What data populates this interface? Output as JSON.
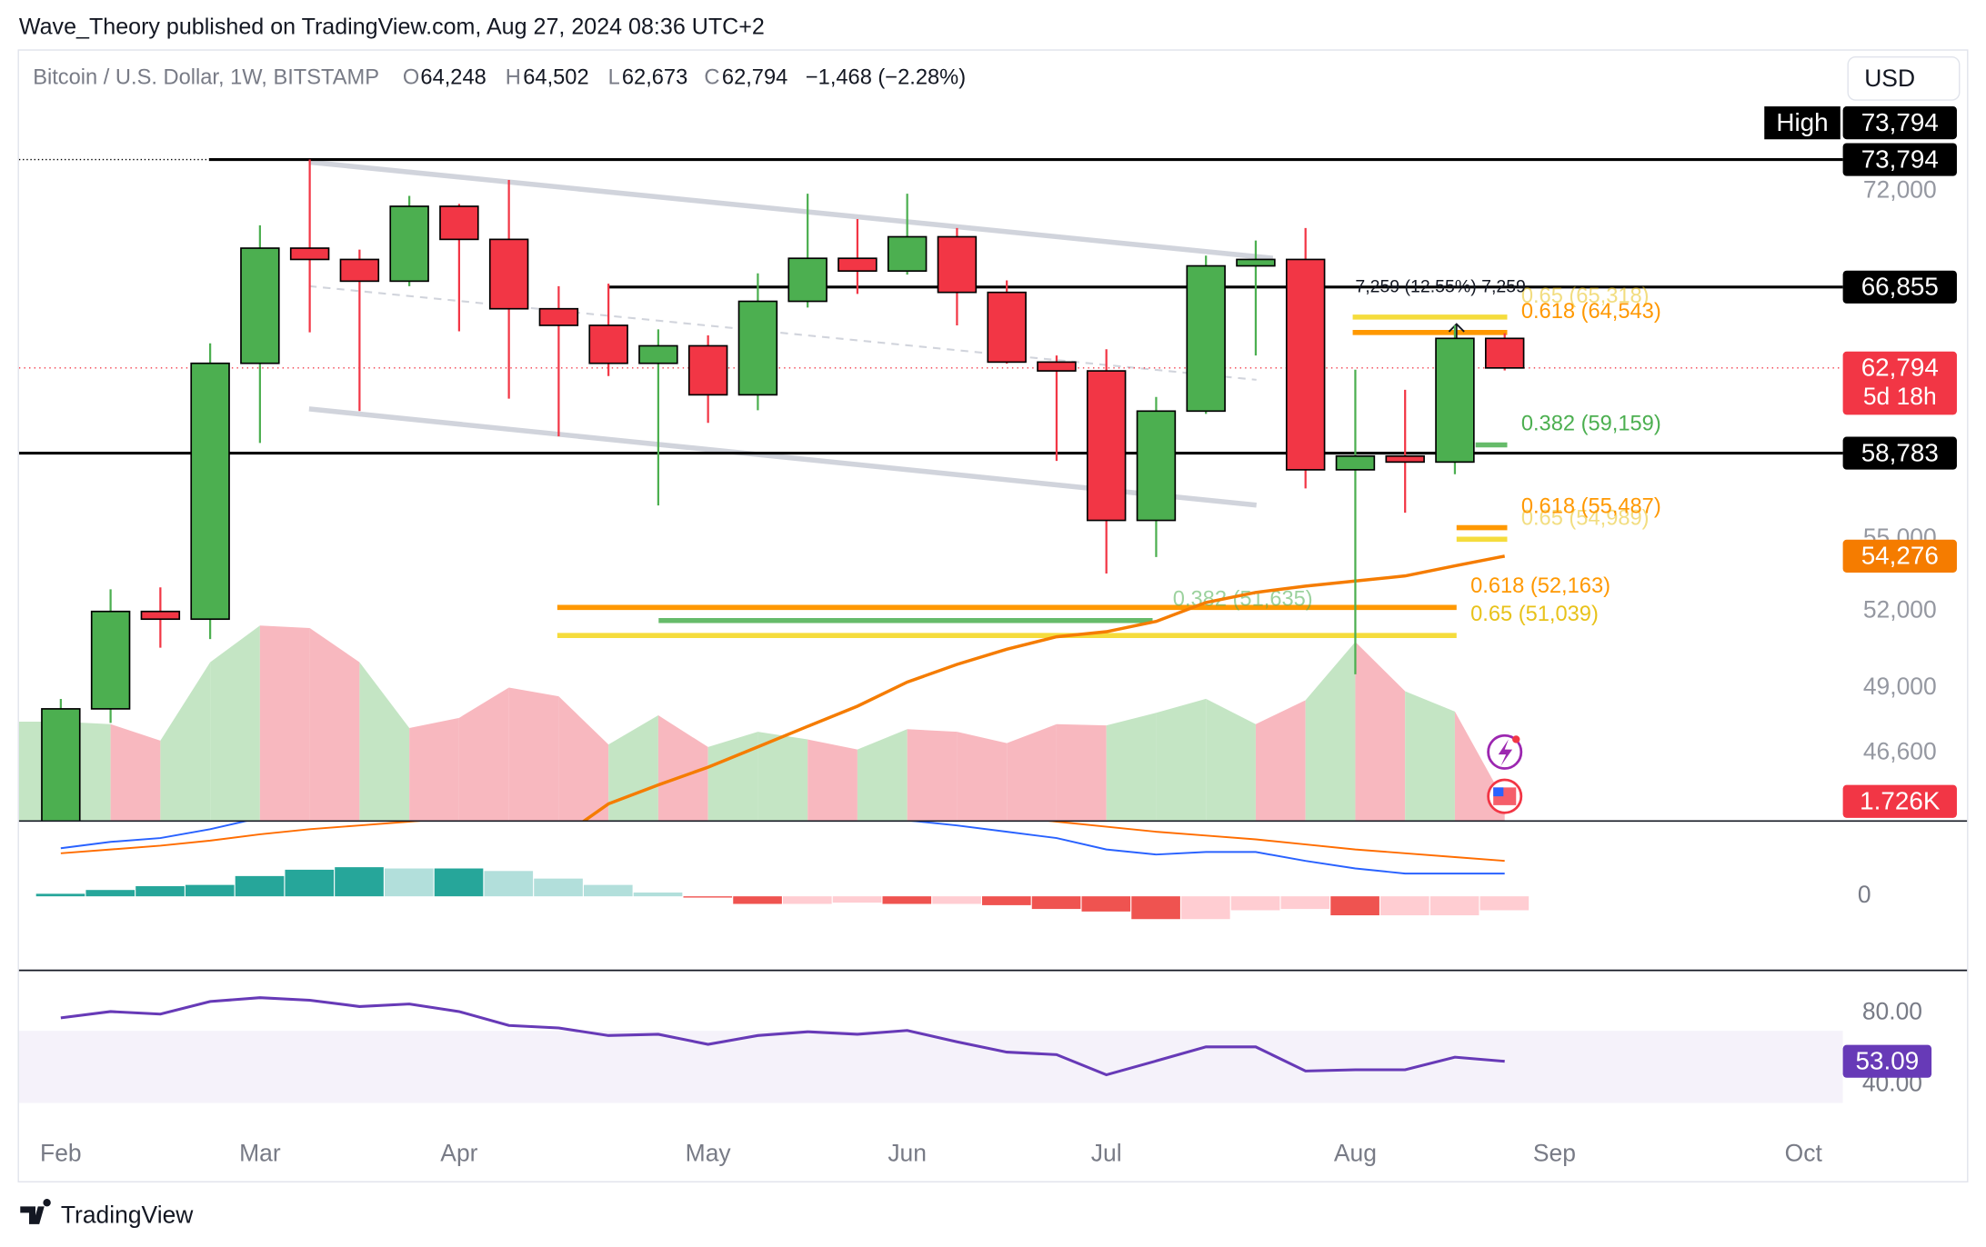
{
  "header": {
    "text": "Wave_Theory published on TradingView.com, Aug 27, 2024 08:36 UTC+2"
  },
  "legend": {
    "symbol": "Bitcoin / U.S. Dollar, 1W, BITSTAMP",
    "o_key": "O",
    "o": "64,248",
    "h_key": "H",
    "h": "64,502",
    "l_key": "L",
    "l": "62,673",
    "c_key": "C",
    "c": "62,794",
    "change": "−1,468 (−2.28%)"
  },
  "currency": "USD",
  "footer": "TradingView",
  "chart_data": {
    "type": "candlestick",
    "log_scale": true,
    "ylim": [
      44230,
      80290
    ],
    "yticks": [
      {
        "value": 72000,
        "label": "72,000"
      },
      {
        "value": 55000,
        "label": "55,000"
      },
      {
        "value": 52000,
        "label": "52,000"
      },
      {
        "value": 49000,
        "label": "49,000"
      },
      {
        "value": 46600,
        "label": "46,600"
      }
    ],
    "xticks": [
      {
        "value": 0,
        "label": "Feb"
      },
      {
        "value": 4,
        "label": "Mar"
      },
      {
        "value": 8,
        "label": "Apr"
      },
      {
        "value": 13,
        "label": "May"
      },
      {
        "value": 17,
        "label": "Jun"
      },
      {
        "value": 21,
        "label": "Jul"
      },
      {
        "value": 26,
        "label": "Aug"
      },
      {
        "value": 30,
        "label": "Sep"
      },
      {
        "value": 35,
        "label": "Oct"
      }
    ],
    "up_color": "#4caf50",
    "down_color": "#f23645",
    "candles": {
      "open": [
        42580,
        48220,
        52000,
        51690,
        63020,
        68900,
        68300,
        67160,
        71170,
        69370,
        65740,
        64900,
        63020,
        63880,
        61500,
        66120,
        68360,
        67690,
        69510,
        66580,
        63080,
        62650,
        55800,
        60730,
        67960,
        68300,
        58030,
        58650,
        58380,
        64248
      ],
      "high": [
        48590,
        52900,
        52980,
        64000,
        70130,
        73794,
        68820,
        71750,
        71300,
        72640,
        66900,
        67030,
        64700,
        64400,
        67570,
        71870,
        70470,
        71870,
        69980,
        67200,
        63400,
        63710,
        61400,
        68500,
        69310,
        69980,
        62710,
        61740,
        64900,
        64502
      ],
      "low": [
        42270,
        47700,
        50560,
        50900,
        59250,
        64550,
        60730,
        66900,
        64600,
        61320,
        59550,
        62400,
        56450,
        60180,
        60770,
        65800,
        66500,
        67500,
        64900,
        63000,
        58430,
        53550,
        54240,
        60600,
        63400,
        57200,
        49530,
        56130,
        57830,
        62673
      ],
      "close": [
        48220,
        52000,
        51690,
        63020,
        68900,
        68300,
        67160,
        71170,
        69370,
        65740,
        64900,
        63020,
        63880,
        61500,
        66120,
        68360,
        67690,
        69510,
        66580,
        63080,
        62650,
        55800,
        60730,
        67960,
        68300,
        58030,
        58650,
        58380,
        64248,
        62794
      ]
    },
    "ma": {
      "color": "#f57c00",
      "values": [
        null,
        null,
        null,
        null,
        null,
        null,
        null,
        null,
        null,
        null,
        43600,
        44800,
        45460,
        46090,
        46820,
        47570,
        48320,
        49230,
        49910,
        50500,
        50990,
        51190,
        51600,
        52360,
        52770,
        53030,
        53240,
        53450,
        53870,
        54276
      ]
    },
    "volume": {
      "ylim": [
        0,
        70
      ],
      "up_color": "#c4e5c4",
      "down_color": "#f8b8bf",
      "values": [
        8.98,
        8.75,
        7.25,
        14.38,
        17.72,
        17.49,
        14.38,
        8.4,
        9.32,
        12.08,
        11.28,
        6.9,
        9.55,
        6.67,
        8.06,
        7.36,
        6.44,
        8.29,
        8.06,
        7.02,
        8.75,
        8.63,
        9.78,
        11.05,
        8.75,
        10.93,
        16.23,
        11.74,
        9.9,
        1.726
      ],
      "value_label": "1.726K"
    },
    "levels": [
      73794,
      66855,
      58783
    ],
    "price_labels": [
      {
        "value": 73794,
        "label": "73,794",
        "color": "#000000"
      },
      {
        "value": 66855,
        "label": "66,855",
        "color": "#000000"
      },
      {
        "value": 62794,
        "label": "62,794",
        "color": "#f23645",
        "sub": "5d 18h"
      },
      {
        "value": 58783,
        "label": "58,783",
        "color": "#000000"
      },
      {
        "value": 54276,
        "label": "54,276",
        "color": "#f57c00"
      }
    ],
    "high_label": {
      "title": "High",
      "value": 73794,
      "label": "73,794"
    },
    "fib": [
      {
        "label": "0.65 (65,318)",
        "value": 65318,
        "color": "#f5dc3c",
        "text_color": "#e8c21a",
        "faded": true
      },
      {
        "label": "0.618 (64,543)",
        "value": 64543,
        "color": "#ff9800",
        "text_color": "#ff9800",
        "faded": false
      },
      {
        "label": "0.382 (59,159)",
        "value": 59159,
        "color": "#66bb6a",
        "text_color": "#4caf50",
        "faded": false
      },
      {
        "label": "0.65 (54,989)",
        "value": 54989,
        "color": "#f5dc3c",
        "text_color": "#e8c21a",
        "faded": true
      },
      {
        "label": "0.618 (55,487)",
        "value": 55487,
        "color": "#ff9800",
        "text_color": "#ff9800",
        "faded": false
      },
      {
        "label": "0.65 (51,039)",
        "value": 51039,
        "color": "#f5dc3c",
        "text_color": "#e8c21a",
        "faded": false
      },
      {
        "label": "0.618 (52,163)",
        "value": 52163,
        "color": "#ff9800",
        "text_color": "#ff9800",
        "faded": false
      },
      {
        "label": "0.382 (51,635)",
        "value": 51635,
        "color": "#66bb6a",
        "text_color": "#4caf50",
        "faded": true
      }
    ],
    "measure": "7,259 (12.55%) 7,259",
    "macd": {
      "ylim": [
        -5800,
        5800
      ],
      "yticks": [
        0
      ],
      "macd_color": "#2962ff",
      "signal_color": "#ff6d00",
      "hist": [
        200,
        500,
        800,
        900,
        1600,
        2100,
        2300,
        2200,
        2200,
        2000,
        1400,
        900,
        300,
        -100,
        -600,
        -600,
        -500,
        -600,
        -600,
        -700,
        -1000,
        -1200,
        -1800,
        -1800,
        -1100,
        -1000,
        -1500,
        -1500,
        -1500,
        -1100
      ],
      "macd": [
        3800,
        4300,
        4600,
        5300,
        6200,
        7200,
        7900,
        8300,
        8500,
        8400,
        8100,
        7700,
        7400,
        7200,
        6900,
        6700,
        6400,
        6000,
        5600,
        5100,
        4600,
        3700,
        3300,
        3500,
        3500,
        2800,
        2200,
        1800,
        1800,
        1800
      ],
      "signal": [
        3400,
        3700,
        4000,
        4400,
        4900,
        5300,
        5600,
        5900,
        6200,
        6400,
        6600,
        6800,
        7000,
        7100,
        7200,
        7200,
        7100,
        7000,
        6700,
        6300,
        5900,
        5500,
        5100,
        4800,
        4500,
        4100,
        3700,
        3400,
        3100,
        2800
      ]
    },
    "rsi": {
      "ylim": [
        16.8,
        102.5
      ],
      "yticks": [
        {
          "value": 80,
          "label": "80.00"
        },
        {
          "value": 40,
          "label": "40.00"
        }
      ],
      "band": [
        30,
        70
      ],
      "color": "#673ab7",
      "values": [
        77.2,
        80.7,
        79.3,
        86.3,
        88.4,
        87,
        83.5,
        84.9,
        80.7,
        73,
        71.6,
        67.4,
        68.1,
        62.5,
        67.4,
        69.5,
        68.1,
        70.2,
        63.9,
        58.2,
        56.8,
        45.6,
        53.3,
        61.1,
        61.1,
        47.7,
        48.4,
        48.4,
        55.4,
        53.09
      ],
      "value_label": "53.09"
    }
  }
}
